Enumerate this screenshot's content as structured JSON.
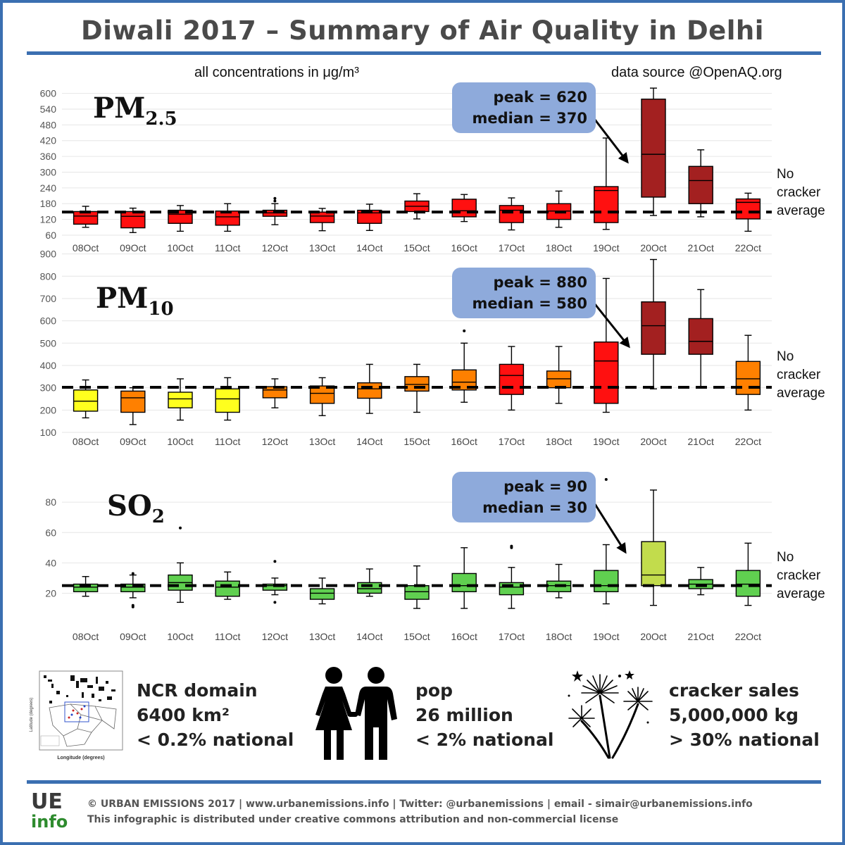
{
  "title": "Diwali 2017 – Summary of Air Quality in Delhi",
  "units_note": "all concentrations in μg/m³",
  "source_note": "data source @OpenAQ.org",
  "no_cracker_lines": [
    "No",
    "cracker",
    "average"
  ],
  "colors": {
    "frame": "#3b6fb1",
    "callout": "#8eaadb",
    "yellow": "#ffff1e",
    "orange": "#ff8000",
    "red": "#ff1010",
    "darkred": "#a32020",
    "green": "#60d050",
    "lightgreen": "#c2dc4c"
  },
  "chart_data": [
    {
      "type": "boxplot",
      "pollutant": "PM",
      "subscript": "2.5",
      "categories": [
        "08Oct",
        "09Oct",
        "10Oct",
        "11Oct",
        "12Oct",
        "13Oct",
        "14Oct",
        "15Oct",
        "16Oct",
        "17Oct",
        "18Oct",
        "19Oct",
        "20Oct",
        "21Oct",
        "22Oct"
      ],
      "ylim": [
        60,
        615
      ],
      "yticks": [
        60,
        120,
        180,
        240,
        300,
        360,
        420,
        480,
        540,
        600
      ],
      "reference_average": 148,
      "callout": {
        "peak_label": "peak = 620",
        "median_label": "median = 370"
      },
      "boxes": [
        {
          "min": 90,
          "q1": 102,
          "median": 133,
          "q3": 150,
          "max": 170,
          "outliers": [],
          "color": "red"
        },
        {
          "min": 70,
          "q1": 88,
          "median": 132,
          "q3": 150,
          "max": 163,
          "outliers": [],
          "color": "red"
        },
        {
          "min": 75,
          "q1": 105,
          "median": 140,
          "q3": 155,
          "max": 173,
          "outliers": [],
          "color": "red"
        },
        {
          "min": 75,
          "q1": 98,
          "median": 130,
          "q3": 152,
          "max": 180,
          "outliers": [],
          "color": "red"
        },
        {
          "min": 100,
          "q1": 132,
          "median": 145,
          "q3": 155,
          "max": 180,
          "outliers": [
            190,
            200
          ],
          "color": "red"
        },
        {
          "min": 77,
          "q1": 108,
          "median": 133,
          "q3": 148,
          "max": 162,
          "outliers": [],
          "color": "red"
        },
        {
          "min": 78,
          "q1": 105,
          "median": 145,
          "q3": 155,
          "max": 178,
          "outliers": [],
          "color": "red"
        },
        {
          "min": 122,
          "q1": 150,
          "median": 170,
          "q3": 190,
          "max": 218,
          "outliers": [],
          "color": "red"
        },
        {
          "min": 112,
          "q1": 130,
          "median": 153,
          "q3": 197,
          "max": 215,
          "outliers": [],
          "color": "red"
        },
        {
          "min": 80,
          "q1": 108,
          "median": 155,
          "q3": 173,
          "max": 202,
          "outliers": [],
          "color": "red"
        },
        {
          "min": 90,
          "q1": 120,
          "median": 152,
          "q3": 180,
          "max": 228,
          "outliers": [],
          "color": "red"
        },
        {
          "min": 82,
          "q1": 108,
          "median": 230,
          "q3": 245,
          "max": 430,
          "outliers": [],
          "color": "red"
        },
        {
          "min": 135,
          "q1": 205,
          "median": 368,
          "q3": 578,
          "max": 620,
          "outliers": [],
          "color": "darkred"
        },
        {
          "min": 130,
          "q1": 180,
          "median": 268,
          "q3": 322,
          "max": 385,
          "outliers": [],
          "color": "darkred"
        },
        {
          "min": 75,
          "q1": 122,
          "median": 185,
          "q3": 198,
          "max": 220,
          "outliers": [],
          "color": "red"
        }
      ]
    },
    {
      "type": "boxplot",
      "pollutant": "PM",
      "subscript": "10",
      "categories": [
        "08Oct",
        "09Oct",
        "10Oct",
        "11Oct",
        "12Oct",
        "13Oct",
        "14Oct",
        "15Oct",
        "16Oct",
        "17Oct",
        "18Oct",
        "19Oct",
        "20Oct",
        "21Oct",
        "22Oct"
      ],
      "ylim": [
        100,
        905
      ],
      "yticks": [
        100,
        200,
        300,
        400,
        500,
        600,
        700,
        800,
        900
      ],
      "reference_average": 302,
      "callout": {
        "peak_label": "peak = 880",
        "median_label": "median = 580"
      },
      "boxes": [
        {
          "min": 165,
          "q1": 195,
          "median": 240,
          "q3": 290,
          "max": 335,
          "outliers": [],
          "color": "yellow"
        },
        {
          "min": 135,
          "q1": 190,
          "median": 255,
          "q3": 285,
          "max": 300,
          "outliers": [],
          "color": "orange"
        },
        {
          "min": 155,
          "q1": 210,
          "median": 250,
          "q3": 280,
          "max": 340,
          "outliers": [],
          "color": "yellow"
        },
        {
          "min": 155,
          "q1": 190,
          "median": 250,
          "q3": 295,
          "max": 345,
          "outliers": [],
          "color": "yellow"
        },
        {
          "min": 210,
          "q1": 255,
          "median": 290,
          "q3": 305,
          "max": 340,
          "outliers": [],
          "color": "orange"
        },
        {
          "min": 175,
          "q1": 230,
          "median": 275,
          "q3": 308,
          "max": 345,
          "outliers": [],
          "color": "orange"
        },
        {
          "min": 185,
          "q1": 253,
          "median": 295,
          "q3": 322,
          "max": 405,
          "outliers": [],
          "color": "orange"
        },
        {
          "min": 190,
          "q1": 285,
          "median": 315,
          "q3": 350,
          "max": 405,
          "outliers": [],
          "color": "orange"
        },
        {
          "min": 235,
          "q1": 290,
          "median": 325,
          "q3": 380,
          "max": 500,
          "outliers": [
            555
          ],
          "color": "orange"
        },
        {
          "min": 200,
          "q1": 270,
          "median": 355,
          "q3": 405,
          "max": 485,
          "outliers": [],
          "color": "red"
        },
        {
          "min": 230,
          "q1": 300,
          "median": 340,
          "q3": 375,
          "max": 485,
          "outliers": [],
          "color": "orange"
        },
        {
          "min": 190,
          "q1": 230,
          "median": 420,
          "q3": 505,
          "max": 790,
          "outliers": [],
          "color": "red"
        },
        {
          "min": 295,
          "q1": 450,
          "median": 578,
          "q3": 685,
          "max": 875,
          "outliers": [],
          "color": "darkred"
        },
        {
          "min": 305,
          "q1": 450,
          "median": 508,
          "q3": 610,
          "max": 740,
          "outliers": [],
          "color": "darkred"
        },
        {
          "min": 200,
          "q1": 270,
          "median": 340,
          "q3": 418,
          "max": 535,
          "outliers": [],
          "color": "orange"
        }
      ]
    },
    {
      "type": "boxplot",
      "pollutant": "SO",
      "subscript": "2",
      "categories": [
        "08Oct",
        "09Oct",
        "10Oct",
        "11Oct",
        "12Oct",
        "13Oct",
        "14Oct",
        "15Oct",
        "16Oct",
        "17Oct",
        "18Oct",
        "19Oct",
        "20Oct",
        "21Oct",
        "22Oct"
      ],
      "ylim": [
        10,
        94
      ],
      "yticks": [
        20,
        40,
        60,
        80
      ],
      "reference_average": 25,
      "callout": {
        "peak_label": "peak = 90",
        "median_label": "median = 30"
      },
      "boxes": [
        {
          "min": 18,
          "q1": 21,
          "median": 24,
          "q3": 26,
          "max": 31,
          "outliers": [],
          "color": "green"
        },
        {
          "min": 17,
          "q1": 21,
          "median": 24,
          "q3": 26,
          "max": 32,
          "outliers": [
            11,
            12,
            33
          ],
          "color": "green"
        },
        {
          "min": 14,
          "q1": 22,
          "median": 27,
          "q3": 32,
          "max": 40,
          "outliers": [
            63
          ],
          "color": "green"
        },
        {
          "min": 16,
          "q1": 18,
          "median": 24,
          "q3": 28,
          "max": 34,
          "outliers": [],
          "color": "green"
        },
        {
          "min": 19,
          "q1": 22,
          "median": 25,
          "q3": 26,
          "max": 30,
          "outliers": [
            14,
            41
          ],
          "color": "green"
        },
        {
          "min": 13,
          "q1": 16,
          "median": 20,
          "q3": 23,
          "max": 30,
          "outliers": [],
          "color": "green"
        },
        {
          "min": 18,
          "q1": 20,
          "median": 23,
          "q3": 27,
          "max": 36,
          "outliers": [],
          "color": "green"
        },
        {
          "min": 10,
          "q1": 16,
          "median": 21,
          "q3": 25,
          "max": 38,
          "outliers": [],
          "color": "green"
        },
        {
          "min": 10,
          "q1": 21,
          "median": 25,
          "q3": 33,
          "max": 50,
          "outliers": [],
          "color": "green"
        },
        {
          "min": 10,
          "q1": 19,
          "median": 24,
          "q3": 27,
          "max": 37,
          "outliers": [
            50,
            51
          ],
          "color": "green"
        },
        {
          "min": 17,
          "q1": 21,
          "median": 25,
          "q3": 28,
          "max": 39,
          "outliers": [],
          "color": "green"
        },
        {
          "min": 13,
          "q1": 21,
          "median": 25,
          "q3": 35,
          "max": 52,
          "outliers": [
            95
          ],
          "color": "green"
        },
        {
          "min": 12,
          "q1": 25,
          "median": 32,
          "q3": 54,
          "max": 88,
          "outliers": [],
          "color": "lightgreen"
        },
        {
          "min": 19,
          "q1": 23,
          "median": 26,
          "q3": 29,
          "max": 37,
          "outliers": [],
          "color": "green"
        },
        {
          "min": 12,
          "q1": 18,
          "median": 26,
          "q3": 35,
          "max": 53,
          "outliers": [],
          "color": "green"
        }
      ]
    }
  ],
  "info_blocks": [
    {
      "icon": "ncr-map-icon",
      "lines": [
        "NCR domain",
        "6400 km²",
        "< 0.2% national"
      ]
    },
    {
      "icon": "couple-icon",
      "lines": [
        "pop",
        "26 million",
        "< 2% national"
      ]
    },
    {
      "icon": "fireworks-icon",
      "lines": [
        "cracker sales",
        "5,000,000 kg",
        "> 30% national"
      ]
    }
  ],
  "map_labels": {
    "xlabel": "Longitude (degrees)",
    "ylabel": "Latitude (degrees)"
  },
  "footer": {
    "logo_top": "UE",
    "logo_bottom": "info",
    "line1": "© URBAN EMISSIONS 2017 | www.urbanemissions.info | Twitter: @urbanemissions | email - simair@urbanemissions.info",
    "line2": "This infographic is distributed under creative commons attribution and non-commercial license"
  }
}
